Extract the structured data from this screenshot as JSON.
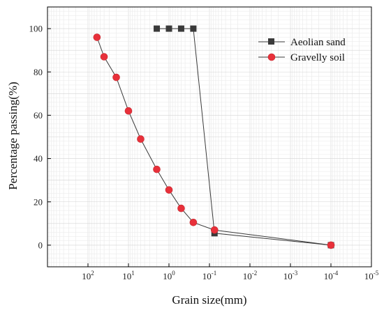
{
  "chart_data": {
    "type": "line",
    "title": "",
    "xlabel": "Grain size(mm)",
    "ylabel": "Percentage passing(%)",
    "x_scale": "log",
    "x_reversed": true,
    "xlim": [
      1000,
      1e-05
    ],
    "ylim": [
      -10,
      110
    ],
    "x_ticks": [
      {
        "value": 100,
        "base": "10",
        "exp": "2"
      },
      {
        "value": 10,
        "base": "10",
        "exp": "1"
      },
      {
        "value": 1,
        "base": "10",
        "exp": "0"
      },
      {
        "value": 0.1,
        "base": "10",
        "exp": "-1"
      },
      {
        "value": 0.01,
        "base": "10",
        "exp": "-2"
      },
      {
        "value": 0.001,
        "base": "10",
        "exp": "-3"
      },
      {
        "value": 0.0001,
        "base": "10",
        "exp": "-4"
      },
      {
        "value": 1e-05,
        "base": "10",
        "exp": "-5"
      }
    ],
    "y_ticks": [
      {
        "value": 0,
        "label": "0"
      },
      {
        "value": 20,
        "label": "20"
      },
      {
        "value": 40,
        "label": "40"
      },
      {
        "value": 60,
        "label": "60"
      },
      {
        "value": 80,
        "label": "80"
      },
      {
        "value": 100,
        "label": "100"
      }
    ],
    "grid": true,
    "legend_position": "top-right",
    "series": [
      {
        "name": "Aeolian sand",
        "marker": "square",
        "color": "#3a3a3a",
        "x": [
          2,
          1,
          0.5,
          0.25,
          0.075,
          0.0001
        ],
        "y": [
          100,
          100,
          100,
          100,
          5.5,
          0
        ]
      },
      {
        "name": "Gravelly soil",
        "marker": "circle",
        "color": "#e8303a",
        "x": [
          60,
          40,
          20,
          10,
          5,
          2,
          1,
          0.5,
          0.25,
          0.075,
          0.0001
        ],
        "y": [
          96,
          87,
          77.5,
          62,
          49,
          35,
          25.5,
          17,
          10.5,
          7,
          0
        ]
      }
    ]
  }
}
